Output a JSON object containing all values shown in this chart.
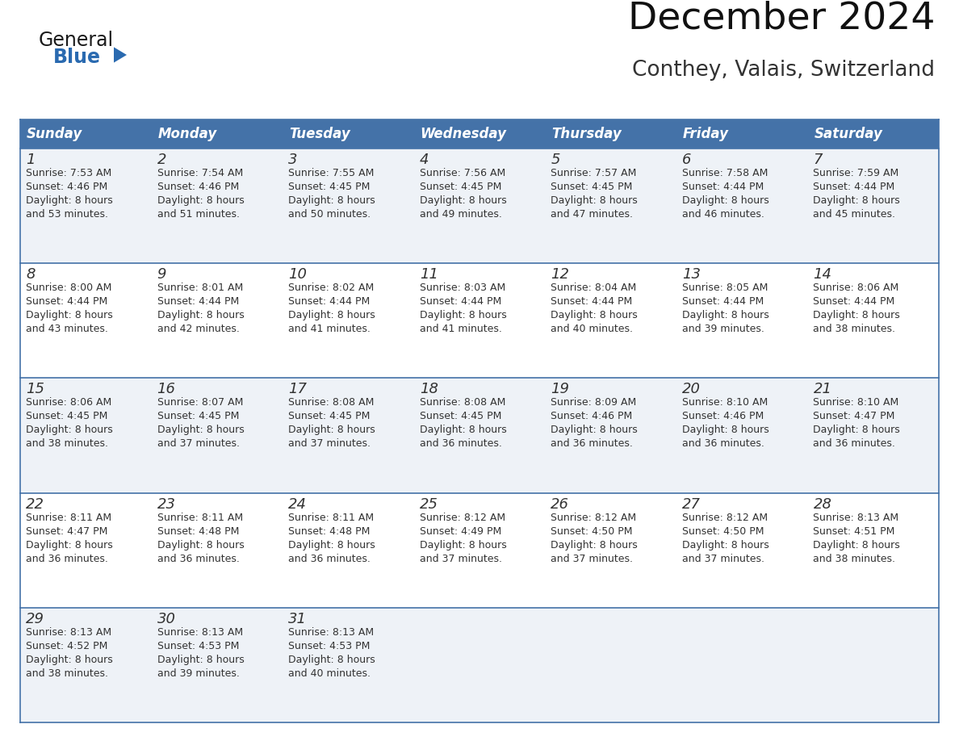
{
  "title": "December 2024",
  "subtitle": "Conthey, Valais, Switzerland",
  "header_bg_color": "#4472a8",
  "header_text_color": "#ffffff",
  "cell_bg_even": "#eef2f7",
  "cell_bg_odd": "#ffffff",
  "border_color": "#4472a8",
  "text_color": "#333333",
  "days_of_week": [
    "Sunday",
    "Monday",
    "Tuesday",
    "Wednesday",
    "Thursday",
    "Friday",
    "Saturday"
  ],
  "weeks": [
    [
      {
        "day": 1,
        "sunrise": "7:53 AM",
        "sunset": "4:46 PM",
        "daylight_hours": 8,
        "daylight_minutes": 53
      },
      {
        "day": 2,
        "sunrise": "7:54 AM",
        "sunset": "4:46 PM",
        "daylight_hours": 8,
        "daylight_minutes": 51
      },
      {
        "day": 3,
        "sunrise": "7:55 AM",
        "sunset": "4:45 PM",
        "daylight_hours": 8,
        "daylight_minutes": 50
      },
      {
        "day": 4,
        "sunrise": "7:56 AM",
        "sunset": "4:45 PM",
        "daylight_hours": 8,
        "daylight_minutes": 49
      },
      {
        "day": 5,
        "sunrise": "7:57 AM",
        "sunset": "4:45 PM",
        "daylight_hours": 8,
        "daylight_minutes": 47
      },
      {
        "day": 6,
        "sunrise": "7:58 AM",
        "sunset": "4:44 PM",
        "daylight_hours": 8,
        "daylight_minutes": 46
      },
      {
        "day": 7,
        "sunrise": "7:59 AM",
        "sunset": "4:44 PM",
        "daylight_hours": 8,
        "daylight_minutes": 45
      }
    ],
    [
      {
        "day": 8,
        "sunrise": "8:00 AM",
        "sunset": "4:44 PM",
        "daylight_hours": 8,
        "daylight_minutes": 43
      },
      {
        "day": 9,
        "sunrise": "8:01 AM",
        "sunset": "4:44 PM",
        "daylight_hours": 8,
        "daylight_minutes": 42
      },
      {
        "day": 10,
        "sunrise": "8:02 AM",
        "sunset": "4:44 PM",
        "daylight_hours": 8,
        "daylight_minutes": 41
      },
      {
        "day": 11,
        "sunrise": "8:03 AM",
        "sunset": "4:44 PM",
        "daylight_hours": 8,
        "daylight_minutes": 41
      },
      {
        "day": 12,
        "sunrise": "8:04 AM",
        "sunset": "4:44 PM",
        "daylight_hours": 8,
        "daylight_minutes": 40
      },
      {
        "day": 13,
        "sunrise": "8:05 AM",
        "sunset": "4:44 PM",
        "daylight_hours": 8,
        "daylight_minutes": 39
      },
      {
        "day": 14,
        "sunrise": "8:06 AM",
        "sunset": "4:44 PM",
        "daylight_hours": 8,
        "daylight_minutes": 38
      }
    ],
    [
      {
        "day": 15,
        "sunrise": "8:06 AM",
        "sunset": "4:45 PM",
        "daylight_hours": 8,
        "daylight_minutes": 38
      },
      {
        "day": 16,
        "sunrise": "8:07 AM",
        "sunset": "4:45 PM",
        "daylight_hours": 8,
        "daylight_minutes": 37
      },
      {
        "day": 17,
        "sunrise": "8:08 AM",
        "sunset": "4:45 PM",
        "daylight_hours": 8,
        "daylight_minutes": 37
      },
      {
        "day": 18,
        "sunrise": "8:08 AM",
        "sunset": "4:45 PM",
        "daylight_hours": 8,
        "daylight_minutes": 36
      },
      {
        "day": 19,
        "sunrise": "8:09 AM",
        "sunset": "4:46 PM",
        "daylight_hours": 8,
        "daylight_minutes": 36
      },
      {
        "day": 20,
        "sunrise": "8:10 AM",
        "sunset": "4:46 PM",
        "daylight_hours": 8,
        "daylight_minutes": 36
      },
      {
        "day": 21,
        "sunrise": "8:10 AM",
        "sunset": "4:47 PM",
        "daylight_hours": 8,
        "daylight_minutes": 36
      }
    ],
    [
      {
        "day": 22,
        "sunrise": "8:11 AM",
        "sunset": "4:47 PM",
        "daylight_hours": 8,
        "daylight_minutes": 36
      },
      {
        "day": 23,
        "sunrise": "8:11 AM",
        "sunset": "4:48 PM",
        "daylight_hours": 8,
        "daylight_minutes": 36
      },
      {
        "day": 24,
        "sunrise": "8:11 AM",
        "sunset": "4:48 PM",
        "daylight_hours": 8,
        "daylight_minutes": 36
      },
      {
        "day": 25,
        "sunrise": "8:12 AM",
        "sunset": "4:49 PM",
        "daylight_hours": 8,
        "daylight_minutes": 37
      },
      {
        "day": 26,
        "sunrise": "8:12 AM",
        "sunset": "4:50 PM",
        "daylight_hours": 8,
        "daylight_minutes": 37
      },
      {
        "day": 27,
        "sunrise": "8:12 AM",
        "sunset": "4:50 PM",
        "daylight_hours": 8,
        "daylight_minutes": 37
      },
      {
        "day": 28,
        "sunrise": "8:13 AM",
        "sunset": "4:51 PM",
        "daylight_hours": 8,
        "daylight_minutes": 38
      }
    ],
    [
      {
        "day": 29,
        "sunrise": "8:13 AM",
        "sunset": "4:52 PM",
        "daylight_hours": 8,
        "daylight_minutes": 38
      },
      {
        "day": 30,
        "sunrise": "8:13 AM",
        "sunset": "4:53 PM",
        "daylight_hours": 8,
        "daylight_minutes": 39
      },
      {
        "day": 31,
        "sunrise": "8:13 AM",
        "sunset": "4:53 PM",
        "daylight_hours": 8,
        "daylight_minutes": 40
      },
      null,
      null,
      null,
      null
    ]
  ],
  "logo_general_color": "#1a1a1a",
  "logo_blue_color": "#2a6ab0",
  "logo_triangle_color": "#2a6ab0"
}
